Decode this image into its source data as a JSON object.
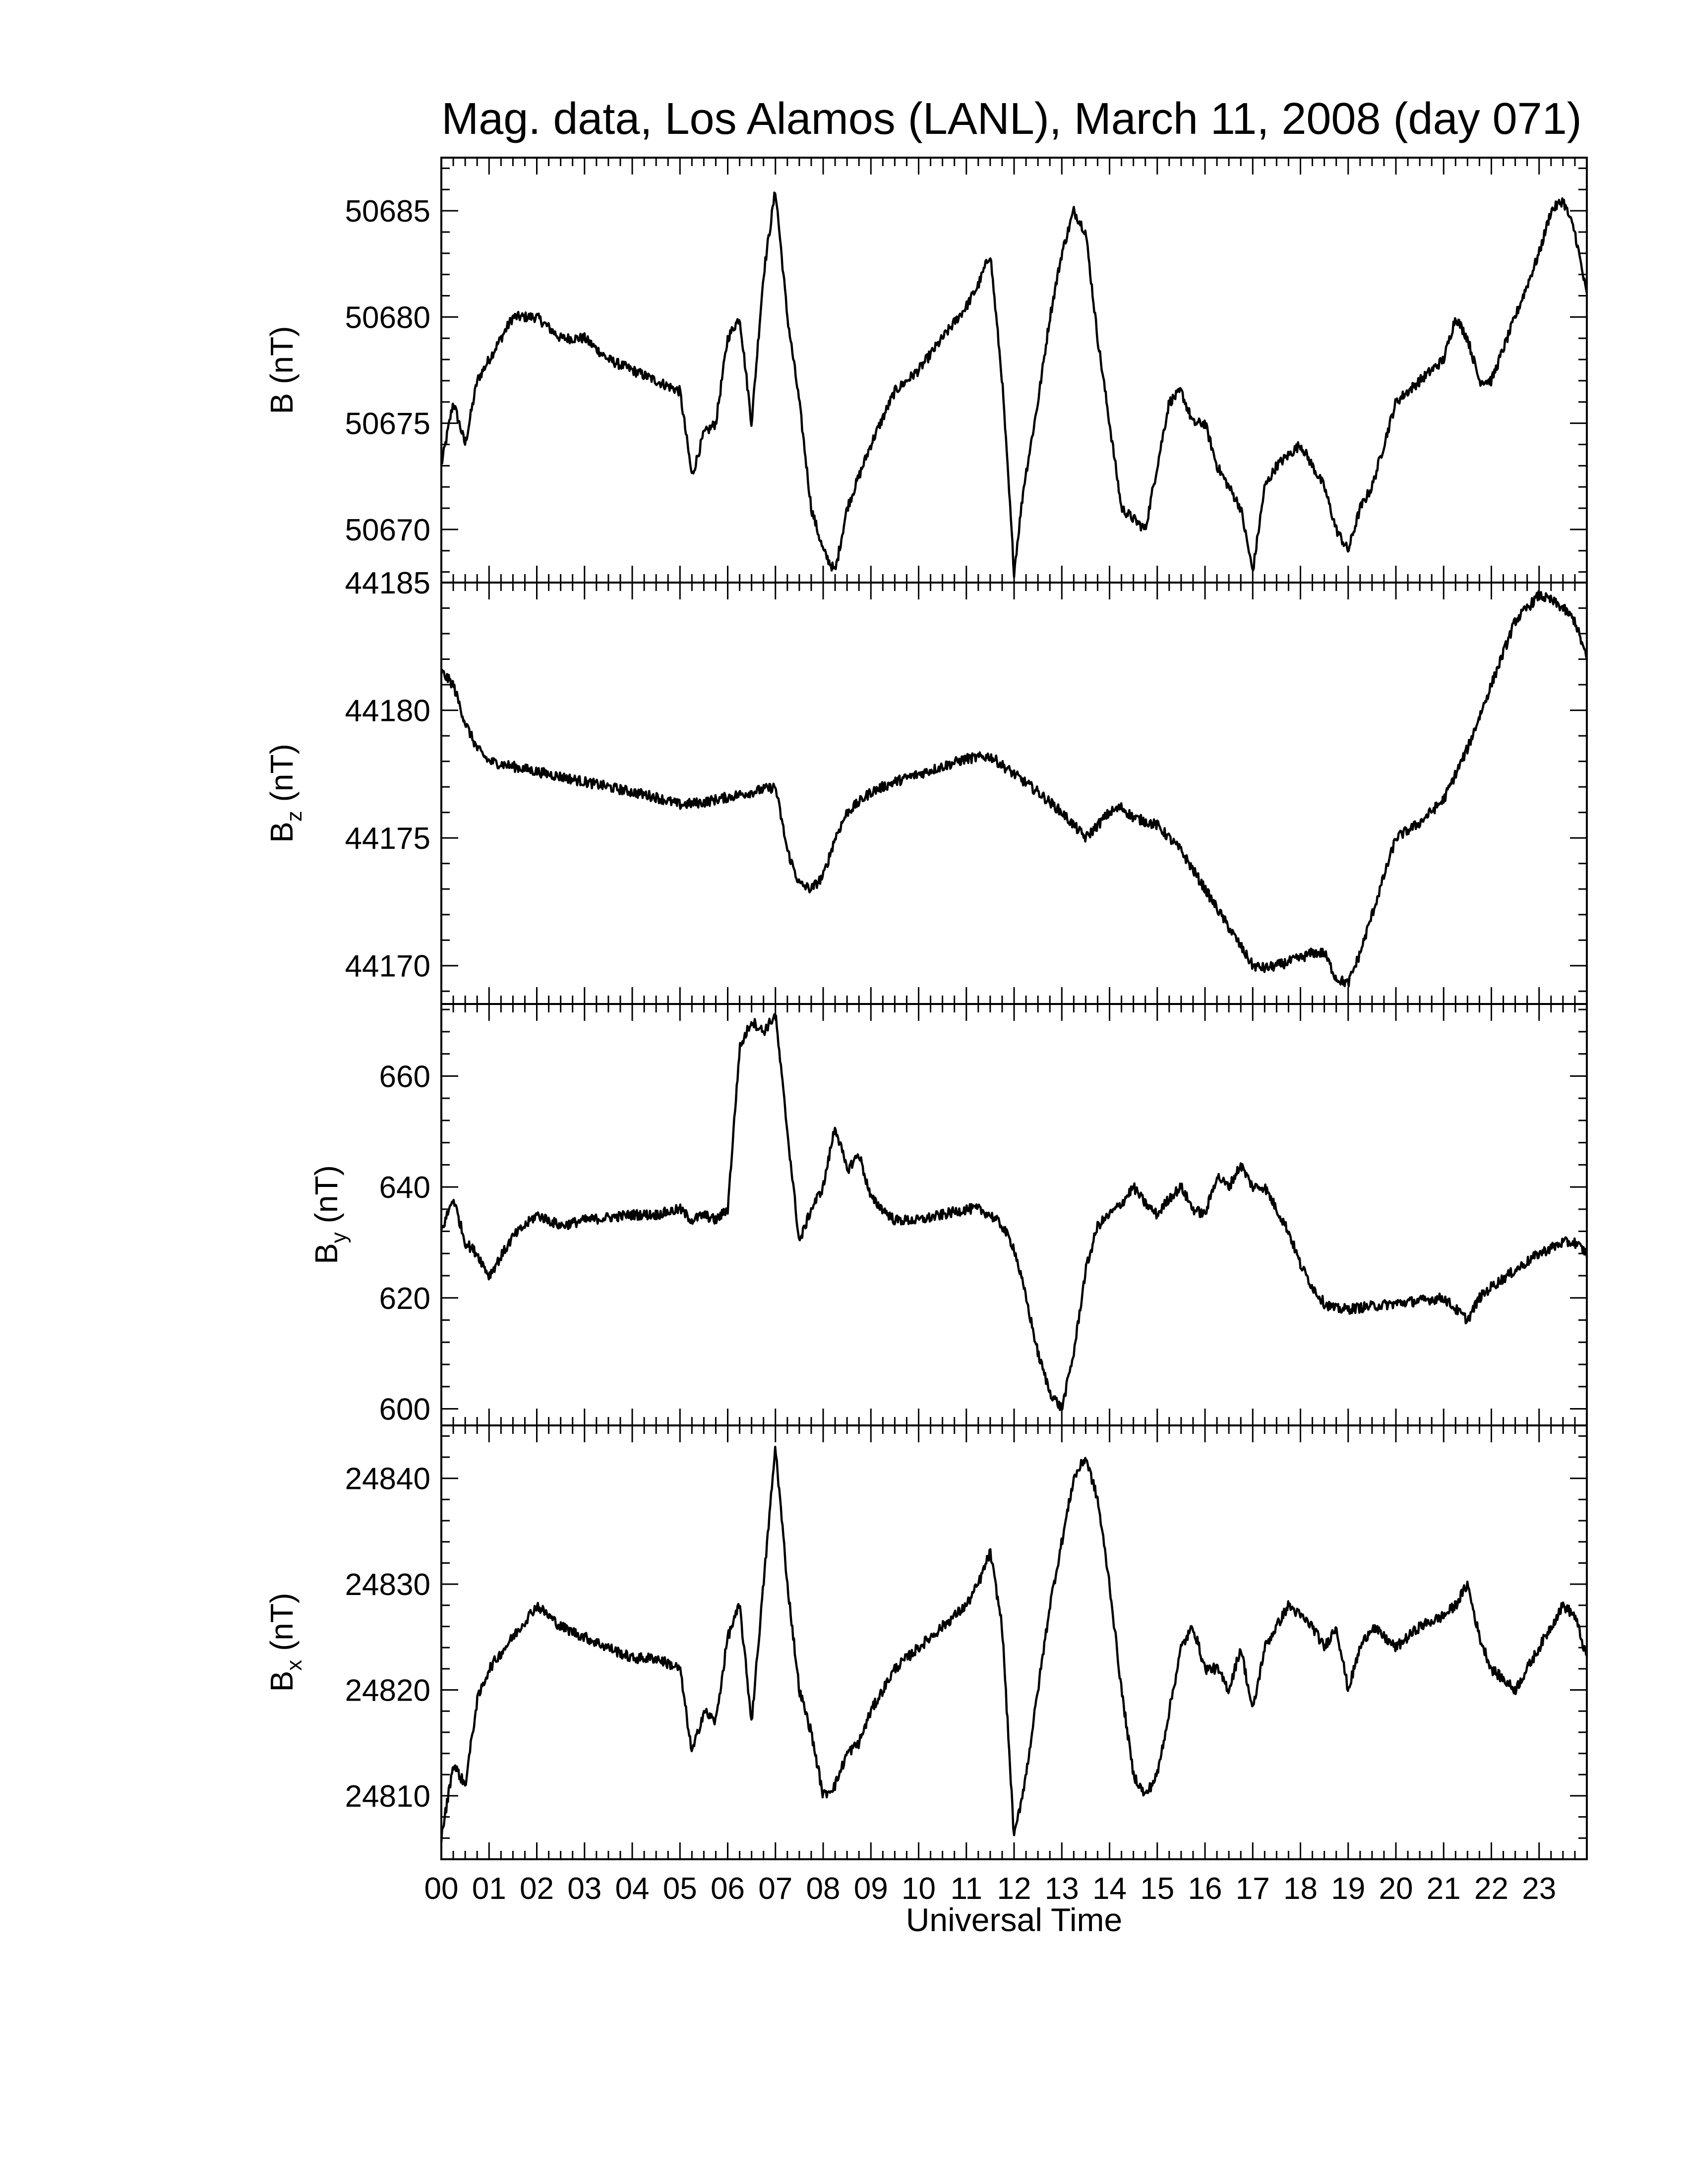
{
  "chart_data": {
    "type": "line",
    "title": "Mag. data, Los Alamos (LANL), March 11, 2008 (day 071)",
    "xlabel": "Universal Time",
    "xlim": [
      0,
      24
    ],
    "xticks": [
      0,
      1,
      2,
      3,
      4,
      5,
      6,
      7,
      8,
      9,
      10,
      11,
      12,
      13,
      14,
      15,
      16,
      17,
      18,
      19,
      20,
      21,
      22,
      23
    ],
    "xticklabels": [
      "00",
      "01",
      "02",
      "03",
      "04",
      "05",
      "06",
      "07",
      "08",
      "09",
      "10",
      "11",
      "12",
      "13",
      "14",
      "15",
      "16",
      "17",
      "18",
      "19",
      "20",
      "21",
      "22",
      "23"
    ],
    "grid": false,
    "legend": "none",
    "panels": [
      {
        "id": "b",
        "ylabel_main": "B",
        "ylabel_sub": "",
        "ylabel_unit": "(nT)",
        "ylim": [
          50667.5,
          50687.5
        ],
        "yticks": [
          50670,
          50675,
          50680,
          50685
        ],
        "series": {
          "x": [
            0,
            0.25,
            0.5,
            0.75,
            1,
            1.5,
            2,
            2.5,
            3,
            3.5,
            4,
            4.5,
            5,
            5.25,
            5.5,
            5.75,
            6,
            6.25,
            6.5,
            6.75,
            7,
            7.25,
            7.5,
            7.75,
            8,
            8.25,
            8.5,
            8.75,
            9,
            9.5,
            10,
            10.5,
            11,
            11.25,
            11.5,
            11.75,
            12,
            12.2,
            12.5,
            12.75,
            13,
            13.25,
            13.5,
            13.75,
            14,
            14.25,
            14.5,
            14.75,
            15,
            15.25,
            15.5,
            15.75,
            16,
            16.25,
            16.5,
            16.75,
            17,
            17.25,
            17.5,
            17.75,
            18,
            18.25,
            18.5,
            18.75,
            19,
            19.25,
            19.5,
            19.75,
            20,
            20.5,
            21,
            21.25,
            21.5,
            21.75,
            22,
            22.5,
            23,
            23.25,
            23.5,
            23.75,
            24
          ],
          "values": [
            50673,
            50676,
            50674,
            50677,
            50678,
            50680,
            50680,
            50679,
            50679,
            50678,
            50677.5,
            50677,
            50676.5,
            50672.5,
            50674.5,
            50675,
            50679,
            50680,
            50675,
            50682,
            50686,
            50680,
            50676,
            50671,
            50669,
            50668,
            50671,
            50672.5,
            50674,
            50676.5,
            50677.5,
            50679,
            50680.5,
            50681.5,
            50683,
            50677,
            50668,
            50672,
            50676,
            50680,
            50683,
            50685,
            50684,
            50679,
            50675,
            50671,
            50670.5,
            50670,
            50673,
            50676,
            50676.5,
            50675,
            50675,
            50673,
            50672,
            50671,
            50668,
            50672,
            50673,
            50673.5,
            50674,
            50673,
            50672,
            50670,
            50669,
            50671,
            50672,
            50674,
            50676,
            50677,
            50678,
            50680,
            50679,
            50677,
            50677,
            50680,
            50683,
            50685,
            50685.5,
            50684,
            50681
          ]
        }
      },
      {
        "id": "bz",
        "ylabel_main": "B",
        "ylabel_sub": "z",
        "ylabel_unit": "(nT)",
        "ylim": [
          44168.5,
          44185
        ],
        "yticks": [
          44170,
          44175,
          44180,
          44185
        ],
        "series": {
          "x": [
            0,
            0.25,
            0.5,
            0.75,
            1,
            1.5,
            2,
            2.5,
            3,
            3.5,
            4,
            4.5,
            5,
            5.5,
            6,
            6.5,
            7,
            7.25,
            7.5,
            7.75,
            8,
            8.25,
            8.5,
            9,
            9.5,
            10,
            10.5,
            11,
            11.5,
            12,
            12.5,
            13,
            13.25,
            13.5,
            13.75,
            14,
            14.25,
            14.5,
            15,
            15.5,
            16,
            16.5,
            17,
            17.25,
            17.5,
            18,
            18.25,
            18.5,
            18.75,
            19,
            19.25,
            19.5,
            20,
            20.5,
            21,
            21.5,
            22,
            22.5,
            23,
            23.25,
            23.5,
            23.75,
            24
          ],
          "values": [
            44181.5,
            44181,
            44179.5,
            44178.5,
            44178,
            44177.8,
            44177.6,
            44177.4,
            44177.2,
            44177,
            44176.8,
            44176.6,
            44176.3,
            44176.4,
            44176.6,
            44176.8,
            44177,
            44174.5,
            44173.2,
            44173,
            44173.5,
            44175,
            44176,
            44176.8,
            44177.2,
            44177.5,
            44177.8,
            44178.1,
            44178.2,
            44177.5,
            44176.8,
            44176,
            44175.5,
            44175,
            44175.5,
            44176,
            44176.2,
            44175.8,
            44175.5,
            44174.5,
            44173,
            44171.5,
            44170,
            44169.9,
            44170,
            44170.3,
            44170.5,
            44170.5,
            44169.5,
            44169.3,
            44170.5,
            44172,
            44175,
            44175.6,
            44176.5,
            44178.5,
            44181,
            44183.5,
            44184.5,
            44184.3,
            44184,
            44183.5,
            44182
          ]
        }
      },
      {
        "id": "by",
        "ylabel_main": "B",
        "ylabel_sub": "y",
        "ylabel_unit": "(nT)",
        "ylim": [
          597,
          673
        ],
        "yticks": [
          600,
          620,
          640,
          660
        ],
        "series": {
          "x": [
            0,
            0.25,
            0.5,
            0.75,
            1,
            1.5,
            2,
            2.5,
            3,
            3.5,
            4,
            4.5,
            5,
            5.25,
            5.5,
            5.75,
            6,
            6.25,
            6.5,
            6.75,
            7,
            7.25,
            7.5,
            7.75,
            8,
            8.25,
            8.5,
            8.75,
            9,
            9.5,
            10,
            10.5,
            11,
            11.25,
            11.5,
            11.75,
            12,
            12.25,
            12.5,
            12.75,
            13,
            13.25,
            13.5,
            13.75,
            14,
            14.25,
            14.5,
            14.75,
            15,
            15.25,
            15.5,
            15.75,
            16,
            16.25,
            16.5,
            16.75,
            17,
            17.25,
            17.5,
            17.75,
            18,
            18.25,
            18.5,
            18.75,
            19,
            19.5,
            20,
            20.5,
            21,
            21.25,
            21.5,
            21.75,
            22,
            22.5,
            23,
            23.25,
            23.5,
            23.75,
            24
          ],
          "values": [
            632,
            638,
            630,
            628,
            624,
            631,
            635,
            633,
            634,
            634.5,
            635,
            635,
            636,
            634,
            635,
            634,
            636,
            665,
            670,
            668,
            671,
            650,
            630,
            636,
            640,
            651,
            643,
            646,
            638,
            634,
            634,
            635,
            636,
            636,
            635,
            633,
            629,
            620,
            610,
            603,
            600,
            610,
            625,
            633,
            635,
            637,
            640,
            637,
            635,
            638,
            640,
            636,
            635,
            642,
            640,
            644,
            640,
            640,
            636,
            632,
            626,
            622,
            619,
            618,
            618,
            618.5,
            619,
            619.5,
            620,
            618,
            616,
            620,
            622,
            625,
            628,
            629,
            630,
            630,
            628
          ]
        }
      },
      {
        "id": "bx",
        "ylabel_main": "B",
        "ylabel_sub": "x",
        "ylabel_unit": "(nT)",
        "ylim": [
          24804,
          24845
        ],
        "yticks": [
          24810,
          24820,
          24830,
          24840
        ],
        "series": {
          "x": [
            0,
            0.25,
            0.5,
            0.75,
            1,
            1.5,
            2,
            2.5,
            3,
            3.5,
            4,
            4.5,
            5,
            5.25,
            5.5,
            5.75,
            6,
            6.25,
            6.5,
            6.75,
            7,
            7.25,
            7.5,
            7.75,
            8,
            8.25,
            8.5,
            8.75,
            9,
            9.5,
            10,
            10.5,
            11,
            11.25,
            11.5,
            11.75,
            12,
            12.25,
            12.5,
            12.75,
            13,
            13.25,
            13.5,
            13.75,
            14,
            14.25,
            14.5,
            14.75,
            15,
            15.25,
            15.5,
            15.75,
            16,
            16.25,
            16.5,
            16.75,
            17,
            17.25,
            17.5,
            17.75,
            18,
            18.25,
            18.5,
            18.75,
            19,
            19.25,
            19.5,
            20,
            20.5,
            21,
            21.25,
            21.5,
            21.75,
            22,
            22.5,
            23,
            23.25,
            23.5,
            23.75,
            24
          ],
          "values": [
            24806,
            24813,
            24811,
            24819,
            24822,
            24825,
            24828,
            24826,
            24825,
            24824,
            24823,
            24823,
            24822,
            24814,
            24818,
            24817,
            24825,
            24828,
            24817,
            24830,
            24843,
            24830,
            24820,
            24816,
            24810,
            24811,
            24814,
            24815,
            24818,
            24822,
            24824,
            24826,
            24828,
            24830,
            24833,
            24826,
            24806,
            24812,
            24820,
            24828,
            24834,
            24840,
            24842,
            24838,
            24830,
            24820,
            24812,
            24810,
            24812,
            24818,
            24824,
            24826,
            24822,
            24822,
            24820,
            24824,
            24818,
            24824,
            24826,
            24828,
            24827,
            24826,
            24824,
            24826,
            24820,
            24824,
            24826,
            24824,
            24826,
            24827,
            24828,
            24830,
            24825,
            24822,
            24820,
            24824,
            24826,
            24828,
            24827,
            24823
          ]
        }
      }
    ]
  }
}
